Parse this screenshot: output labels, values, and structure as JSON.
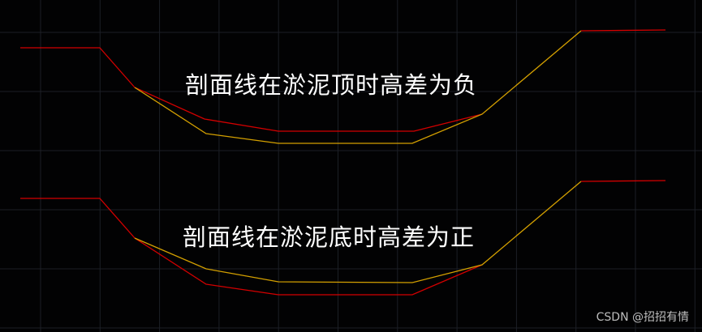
{
  "labels": {
    "top": "剖面线在淤泥顶时高差为负",
    "bottom": "剖面线在淤泥底时高差为正"
  },
  "watermark": "CSDN @招招有情",
  "colors": {
    "background": "#020203",
    "grid": "#1c1f26",
    "section_line": "#d40000",
    "silt_line": "#d4a000",
    "text": "#ffffff"
  }
}
